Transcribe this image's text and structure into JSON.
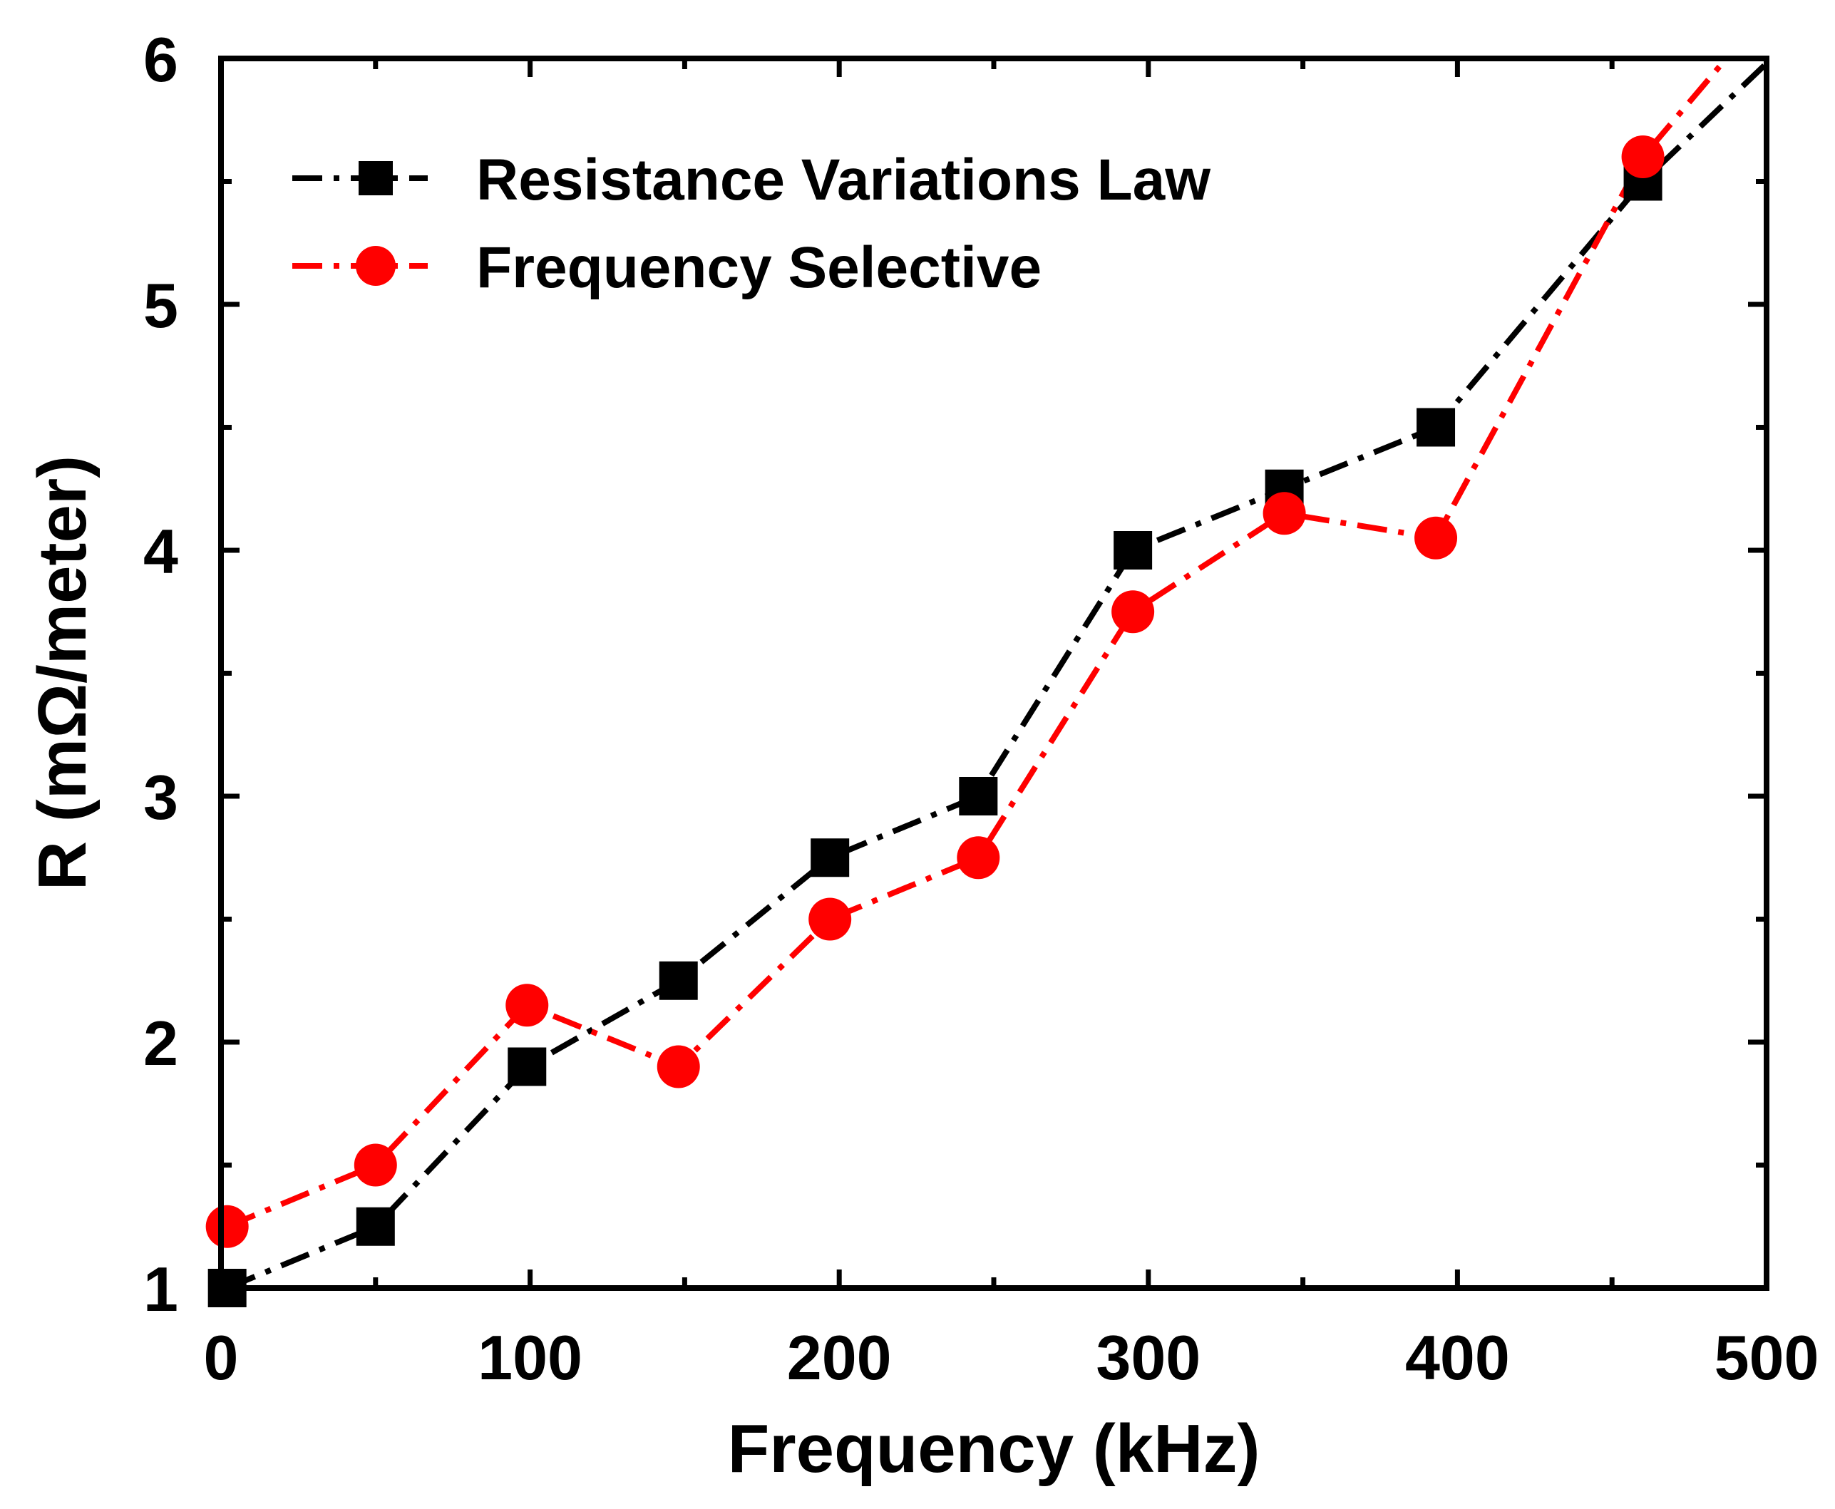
{
  "chart_data": {
    "type": "line",
    "xlabel": "Frequency (kHz)",
    "ylabel": "R (mΩ/meter)",
    "xlim": [
      0,
      500
    ],
    "ylim": [
      1,
      6
    ],
    "x_major_ticks": [
      0,
      100,
      200,
      300,
      400,
      500
    ],
    "x_minor_ticks": [
      50,
      150,
      250,
      350,
      450
    ],
    "y_major_ticks": [
      1,
      2,
      3,
      4,
      5,
      6
    ],
    "y_minor_ticks": [
      1.5,
      2.5,
      3.5,
      4.5,
      5.5
    ],
    "x_tick_labels": [
      "0",
      "100",
      "200",
      "300",
      "400",
      "500"
    ],
    "y_tick_labels": [
      "1",
      "2",
      "3",
      "4",
      "5",
      "6"
    ],
    "grid": false,
    "legend_position": "top-left",
    "series": [
      {
        "name": "Resistance Variations Law",
        "color": "#000000",
        "marker": "square",
        "line_style": "dash-dot",
        "x": [
          2,
          50,
          99,
          148,
          197,
          245,
          295,
          344,
          393,
          460,
          500
        ],
        "y": [
          1.0,
          1.25,
          1.9,
          2.25,
          2.75,
          3.0,
          4.0,
          4.25,
          4.5,
          5.5,
          5.98
        ],
        "marker_count": 10
      },
      {
        "name": "Frequency Selective",
        "color": "#ff0000",
        "marker": "circle",
        "line_style": "dash-dot",
        "x": [
          2,
          50,
          99,
          148,
          197,
          245,
          295,
          344,
          393,
          460,
          487
        ],
        "y": [
          1.25,
          1.5,
          2.15,
          1.9,
          2.5,
          2.75,
          3.75,
          4.15,
          4.05,
          5.6,
          6.0
        ],
        "marker_count": 10
      }
    ]
  }
}
